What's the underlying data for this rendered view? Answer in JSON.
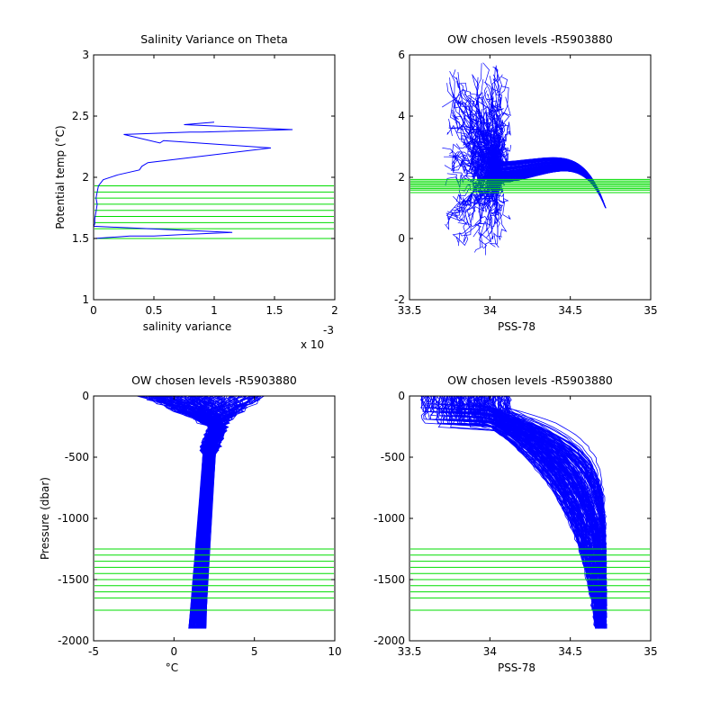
{
  "chart_data": [
    {
      "type": "line",
      "title": "Salinity Variance on Theta",
      "xlabel": "salinity variance",
      "ylabel": "Potential temp (°C)",
      "x_exponent_label": "x 10",
      "x_exponent_power": "-3",
      "xlim": [
        0,
        2
      ],
      "ylim": [
        1,
        3
      ],
      "xticks": [
        0,
        0.5,
        1,
        1.5,
        2
      ],
      "xtick_labels": [
        "0",
        "0.5",
        "1",
        "1.5",
        "2"
      ],
      "yticks": [
        1,
        1.5,
        2,
        2.5,
        3
      ],
      "ytick_labels": [
        "1",
        "1.5",
        "2",
        "2.5",
        "3"
      ],
      "series_color": "#0000ff",
      "level_color": "#00dd00",
      "chosen_levels": [
        1.5,
        1.58,
        1.63,
        1.68,
        1.73,
        1.78,
        1.83,
        1.88,
        1.93
      ],
      "series": [
        {
          "x": [
            1.0,
            0.75,
            1.65,
            0.9,
            0.8,
            0.25,
            0.55,
            0.58,
            1.47,
            0.45,
            0.4,
            0.38,
            0.2,
            0.08,
            0.04,
            0.03,
            0.02,
            0.03,
            0.02,
            0.01,
            0.01,
            0.0,
            1.15,
            0.7,
            0.5,
            0.3,
            0.0
          ],
          "y": [
            2.45,
            2.43,
            2.39,
            2.37,
            2.37,
            2.35,
            2.28,
            2.3,
            2.24,
            2.12,
            2.09,
            2.06,
            2.02,
            1.98,
            1.93,
            1.88,
            1.83,
            1.78,
            1.72,
            1.66,
            1.62,
            1.6,
            1.55,
            1.53,
            1.52,
            1.52,
            1.5
          ]
        }
      ]
    },
    {
      "type": "line",
      "title": "OW chosen levels -R5903880",
      "xlabel": "PSS-78",
      "ylabel": "",
      "xlim": [
        33.5,
        35
      ],
      "ylim": [
        -2,
        6
      ],
      "xticks": [
        33.5,
        34,
        34.5,
        35
      ],
      "xtick_labels": [
        "33.5",
        "34",
        "34.5",
        "35"
      ],
      "yticks": [
        -2,
        0,
        2,
        4,
        6
      ],
      "ytick_labels": [
        "-2",
        "0",
        "2",
        "4",
        "6"
      ],
      "series_color": "#0000ff",
      "level_color": "#00dd00",
      "chosen_levels": [
        1.5,
        1.58,
        1.63,
        1.68,
        1.73,
        1.78,
        1.83,
        1.88,
        1.93
      ],
      "profile_count": 180,
      "profile_shape": {
        "surface_salinity_range": [
          33.72,
          34.12
        ],
        "surface_temp_range": [
          -0.6,
          5.6
        ],
        "deep_salinity": 34.72,
        "deep_temp": 1.0
      }
    },
    {
      "type": "line",
      "title": "OW chosen levels -R5903880",
      "xlabel": "°C",
      "ylabel": "Pressure (dbar)",
      "xlim": [
        -5,
        10
      ],
      "ylim": [
        -2000,
        0
      ],
      "xticks": [
        -5,
        0,
        5,
        10
      ],
      "xtick_labels": [
        "-5",
        "0",
        "5",
        "10"
      ],
      "yticks": [
        -2000,
        -1500,
        -1000,
        -500,
        0
      ],
      "ytick_labels": [
        "-2000",
        "-1500",
        "-1000",
        "-500",
        "0"
      ],
      "series_color": "#0000ff",
      "level_color": "#00dd00",
      "chosen_levels": [
        -1250,
        -1300,
        -1350,
        -1400,
        -1450,
        -1500,
        -1550,
        -1600,
        -1650,
        -1750
      ],
      "profile_count": 180,
      "profile_shape": {
        "surface_temp_range": [
          -2.0,
          5.5
        ],
        "mid_temp": 2.2,
        "bottom_temp_range": [
          0.9,
          2.0
        ],
        "max_depth": -1900
      }
    },
    {
      "type": "line",
      "title": "OW chosen levels -R5903880",
      "xlabel": "PSS-78",
      "ylabel": "",
      "xlim": [
        33.5,
        35
      ],
      "ylim": [
        -2000,
        0
      ],
      "xticks": [
        33.5,
        34,
        34.5,
        35
      ],
      "xtick_labels": [
        "33.5",
        "34",
        "34.5",
        "35"
      ],
      "yticks": [
        -2000,
        -1500,
        -1000,
        -500,
        0
      ],
      "ytick_labels": [
        "-2000",
        "-1500",
        "-1000",
        "-500",
        "0"
      ],
      "series_color": "#0000ff",
      "level_color": "#00dd00",
      "chosen_levels": [
        -1250,
        -1300,
        -1350,
        -1400,
        -1450,
        -1500,
        -1550,
        -1600,
        -1650,
        -1750
      ],
      "profile_count": 180,
      "profile_shape": {
        "surface_salinity_range": [
          33.58,
          34.12
        ],
        "deep_salinity": 34.72,
        "max_depth": -1900
      }
    }
  ]
}
